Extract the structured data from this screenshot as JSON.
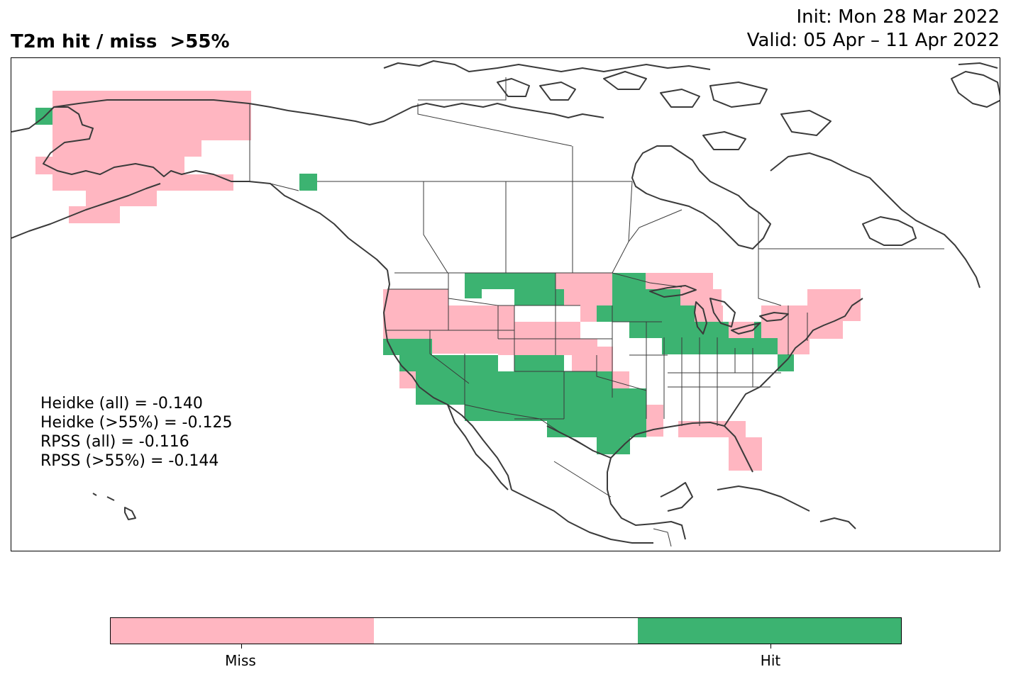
{
  "header": {
    "title": "T2m hit / miss  >55%",
    "init": "Init: Mon 28 Mar 2022",
    "valid": "Valid: 05 Apr – 11 Apr 2022"
  },
  "colors": {
    "miss": "#ffb6c1",
    "none": "#ffffff",
    "hit": "#3cb371"
  },
  "map": {
    "projection": "PlateCarree",
    "extent_lon": [
      -170,
      -50
    ],
    "extent_lat": [
      5,
      75
    ],
    "grid_spacing_deg": 2
  },
  "scores": [
    "Heidke (all) = -0.140",
    "Heidke (>55%) = -0.125",
    "RPSS (all) = -0.116",
    "RPSS (>55%) = -0.144"
  ],
  "legend": {
    "categories": [
      "Miss",
      "",
      "Hit"
    ],
    "tick_labels": [
      "Miss",
      "Hit"
    ]
  }
}
